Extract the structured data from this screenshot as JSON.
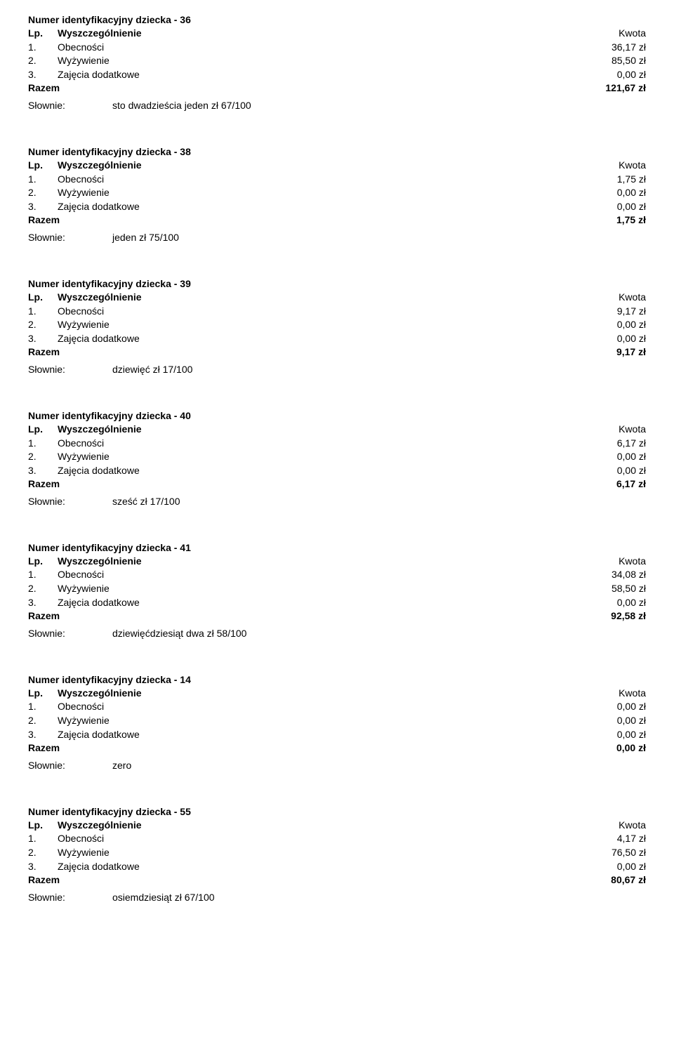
{
  "labels": {
    "title_prefix": "Numer identyfikacyjny dziecka - ",
    "lp": "Lp.",
    "wyszczegolnienie": "Wyszczególnienie",
    "kwota": "Kwota",
    "razem": "Razem",
    "slownie": "Słownie:",
    "item1": "Obecności",
    "item2": "Wyżywienie",
    "item3": "Zajęcia dodatkowe",
    "n1": "1.",
    "n2": "2.",
    "n3": "3."
  },
  "blocks": [
    {
      "id": "36",
      "obecnosci": "36,17 zł",
      "wyzywienie": "85,50 zł",
      "zajecia": "0,00 zł",
      "razem": "121,67 zł",
      "slownie": "sto  dwadzieścia  jeden  zł 67/100"
    },
    {
      "id": "38",
      "obecnosci": "1,75 zł",
      "wyzywienie": "0,00 zł",
      "zajecia": "0,00 zł",
      "razem": "1,75 zł",
      "slownie": "jeden  zł 75/100"
    },
    {
      "id": "39",
      "obecnosci": "9,17 zł",
      "wyzywienie": "0,00 zł",
      "zajecia": "0,00 zł",
      "razem": "9,17 zł",
      "slownie": "dziewięć  zł 17/100"
    },
    {
      "id": "40",
      "obecnosci": "6,17 zł",
      "wyzywienie": "0,00 zł",
      "zajecia": "0,00 zł",
      "razem": "6,17 zł",
      "slownie": "sześć  zł 17/100"
    },
    {
      "id": "41",
      "obecnosci": "34,08 zł",
      "wyzywienie": "58,50 zł",
      "zajecia": "0,00 zł",
      "razem": "92,58 zł",
      "slownie": "dziewięćdziesiąt  dwa  zł 58/100"
    },
    {
      "id": "14",
      "obecnosci": "0,00 zł",
      "wyzywienie": "0,00 zł",
      "zajecia": "0,00 zł",
      "razem": "0,00 zł",
      "slownie": "zero"
    },
    {
      "id": "55",
      "obecnosci": "4,17 zł",
      "wyzywienie": "76,50 zł",
      "zajecia": "0,00 zł",
      "razem": "80,67 zł",
      "slownie": "osiemdziesiąt  zł 67/100"
    }
  ]
}
